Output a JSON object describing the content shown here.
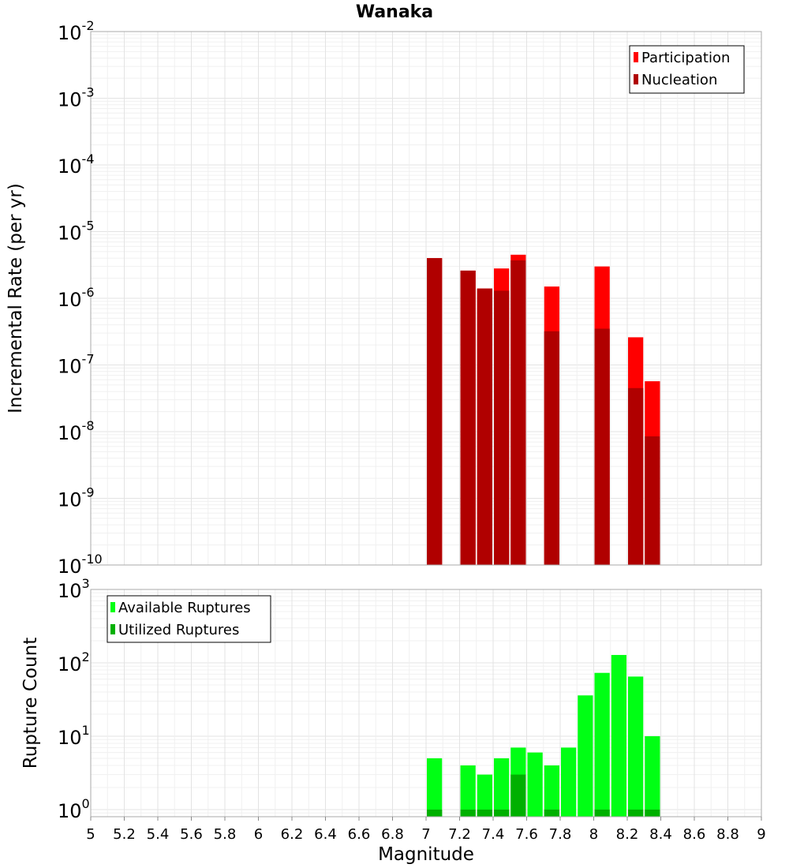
{
  "chart_data": [
    {
      "type": "bar",
      "title": "Wanaka",
      "xlabel": "",
      "ylabel": "Incremental Rate (per yr)",
      "yscale": "log",
      "ylim": [
        1e-10,
        0.01
      ],
      "xlim": [
        5,
        9
      ],
      "y_ticks": [
        {
          "base": "10",
          "exp": "-10"
        },
        {
          "base": "10",
          "exp": "-9"
        },
        {
          "base": "10",
          "exp": "-8"
        },
        {
          "base": "10",
          "exp": "-7"
        },
        {
          "base": "10",
          "exp": "-6"
        },
        {
          "base": "10",
          "exp": "-5"
        },
        {
          "base": "10",
          "exp": "-4"
        },
        {
          "base": "10",
          "exp": "-3"
        },
        {
          "base": "10",
          "exp": "-2"
        }
      ],
      "grid": true,
      "legend_position": "top-right",
      "series": [
        {
          "name": "Participation",
          "color": "#ff0000",
          "x": [
            7.05,
            7.25,
            7.35,
            7.45,
            7.55,
            7.75,
            8.05,
            8.25,
            8.35
          ],
          "values": [
            4e-06,
            2.6e-06,
            1.4e-06,
            2.8e-06,
            4.5e-06,
            1.5e-06,
            3e-06,
            2.6e-07,
            5.7e-08
          ]
        },
        {
          "name": "Nucleation",
          "color": "#b00000",
          "x": [
            7.05,
            7.25,
            7.35,
            7.45,
            7.55,
            7.75,
            8.05,
            8.25,
            8.35
          ],
          "values": [
            4e-06,
            2.6e-06,
            1.4e-06,
            1.3e-06,
            3.7e-06,
            3.2e-07,
            3.5e-07,
            4.5e-08,
            8.5e-09
          ]
        }
      ]
    },
    {
      "type": "bar",
      "title": "",
      "xlabel": "Magnitude",
      "ylabel": "Rupture Count",
      "yscale": "log",
      "ylim": [
        0.8,
        1000
      ],
      "xlim": [
        5,
        9
      ],
      "x_ticks": [
        "5",
        "5.2",
        "5.4",
        "5.6",
        "5.8",
        "6",
        "6.2",
        "6.4",
        "6.6",
        "6.8",
        "7",
        "7.2",
        "7.4",
        "7.6",
        "7.8",
        "8",
        "8.2",
        "8.4",
        "8.6",
        "8.8",
        "9"
      ],
      "y_ticks": [
        {
          "base": "10",
          "exp": "0"
        },
        {
          "base": "10",
          "exp": "1"
        },
        {
          "base": "10",
          "exp": "2"
        },
        {
          "base": "10",
          "exp": "3"
        }
      ],
      "grid": true,
      "legend_position": "top-left",
      "series": [
        {
          "name": "Available Ruptures",
          "color": "#00ff14",
          "x": [
            7.05,
            7.25,
            7.35,
            7.45,
            7.55,
            7.65,
            7.75,
            7.85,
            7.95,
            8.05,
            8.15,
            8.25,
            8.35
          ],
          "values": [
            5,
            4,
            3,
            5,
            7,
            6,
            4,
            7,
            36,
            73,
            128,
            65,
            10
          ]
        },
        {
          "name": "Utilized Ruptures",
          "color": "#00b000",
          "x": [
            7.05,
            7.25,
            7.35,
            7.45,
            7.55,
            7.75,
            8.05,
            8.25,
            8.35
          ],
          "values": [
            1,
            1,
            1,
            1,
            3,
            1,
            1,
            1,
            1
          ]
        }
      ]
    }
  ]
}
